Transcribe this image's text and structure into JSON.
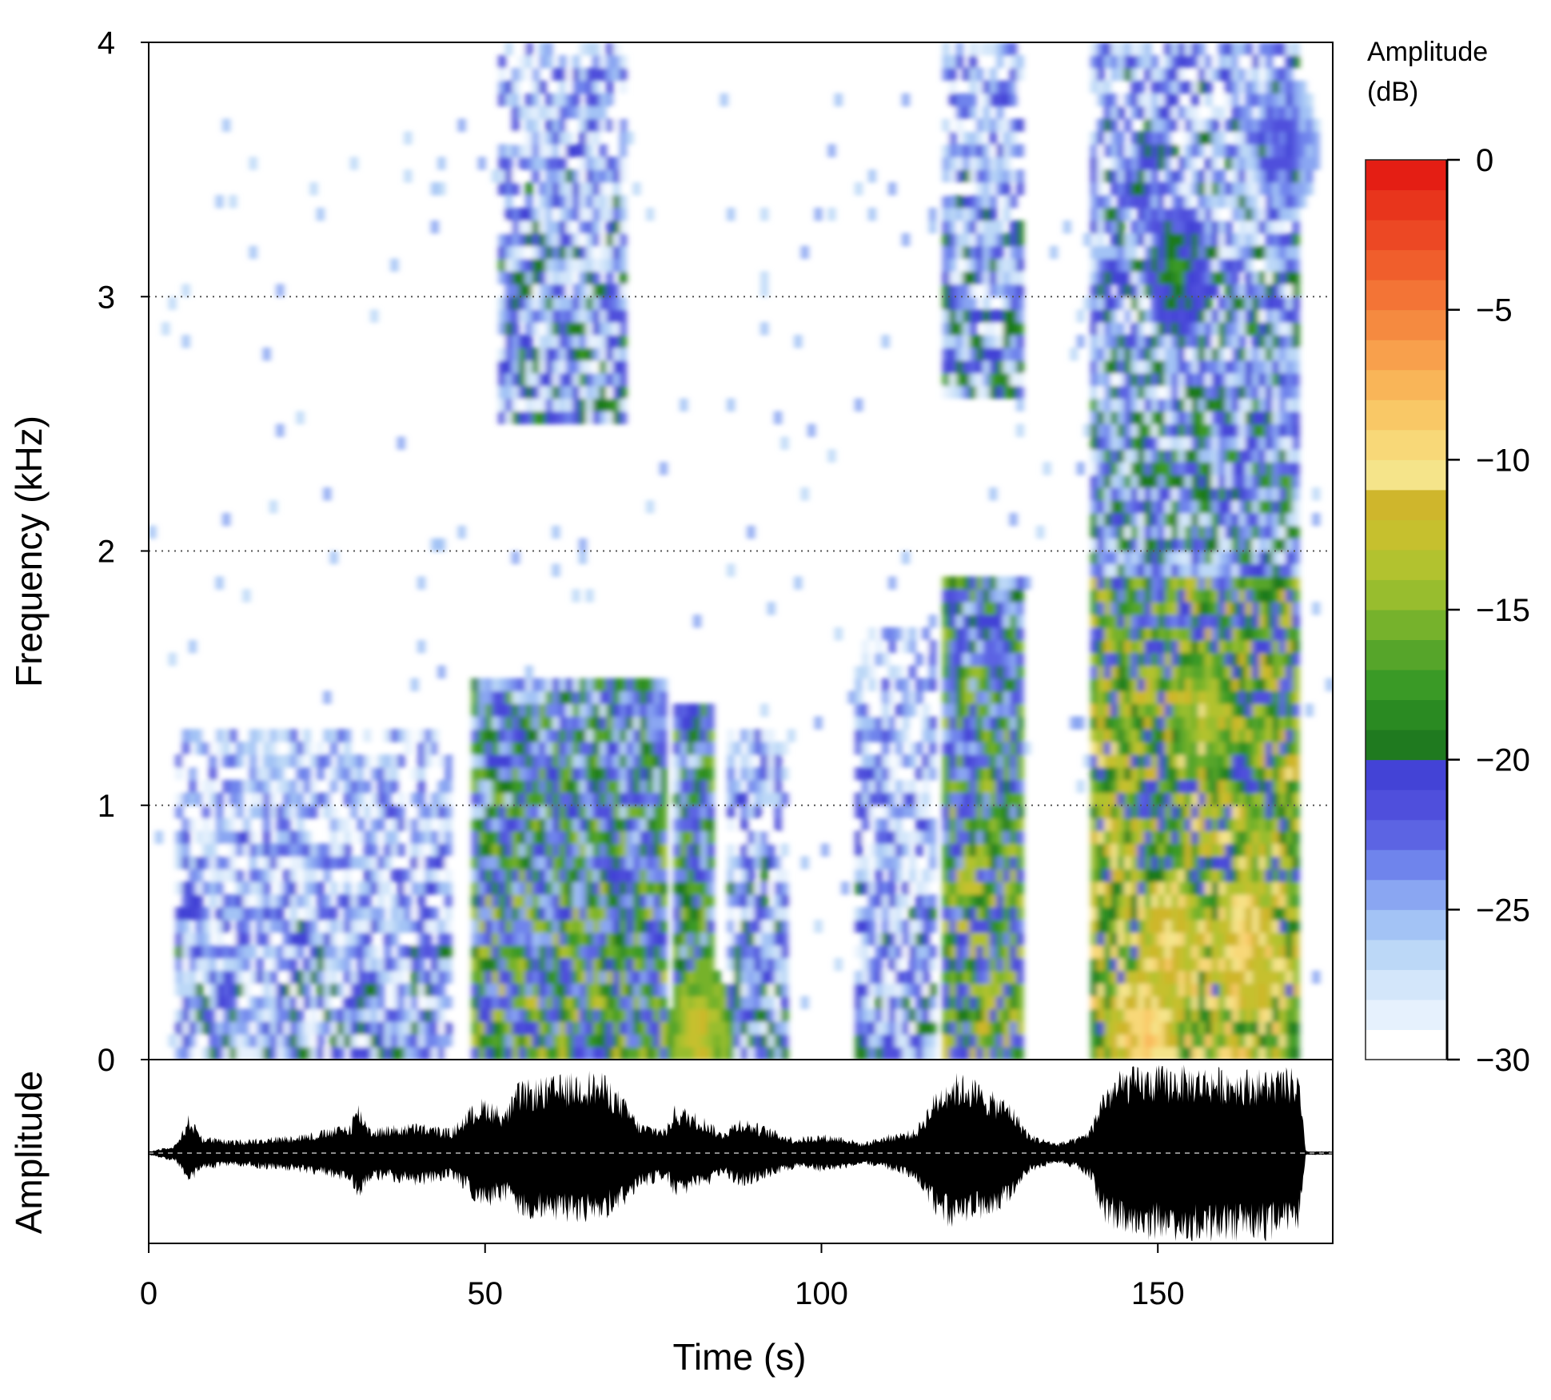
{
  "chart_data": [
    {
      "type": "heatmap",
      "title": "",
      "xlabel": "Time (s)",
      "ylabel": "Frequency (kHz)",
      "xlim": [
        0,
        176
      ],
      "ylim": [
        0,
        4
      ],
      "x_ticks": [
        "0",
        "50",
        "100",
        "150"
      ],
      "y_ticks": [
        "0",
        "1",
        "2",
        "3",
        "4"
      ],
      "grid": "dotted horizontal lines at 1, 2 and 3 kHz",
      "legend": {
        "title": "Amplitude (dB)",
        "position": "right",
        "ticks": [
          "0",
          "−5",
          "−10",
          "−15",
          "−20",
          "−25",
          "−30"
        ],
        "range": [
          -30,
          0
        ]
      },
      "energy_regions_dB": [
        {
          "t0": 4,
          "t1": 45,
          "f0": 0,
          "f1": 1.3,
          "level": -24
        },
        {
          "t0": 48,
          "t1": 77,
          "f0": 0,
          "f1": 1.5,
          "level": -18
        },
        {
          "t0": 52,
          "t1": 71,
          "f0": 2.5,
          "f1": 4,
          "level": -23
        },
        {
          "t0": 78,
          "t1": 84,
          "f0": 0,
          "f1": 1.4,
          "level": -18
        },
        {
          "t0": 86,
          "t1": 95,
          "f0": 0,
          "f1": 1.3,
          "level": -23
        },
        {
          "t0": 105,
          "t1": 117,
          "f0": 0,
          "f1": 1.7,
          "level": -24
        },
        {
          "t0": 118,
          "t1": 130,
          "f0": 0,
          "f1": 1.9,
          "level": -17
        },
        {
          "t0": 118,
          "t1": 130,
          "f0": 2.6,
          "f1": 4,
          "level": -23
        },
        {
          "t0": 140,
          "t1": 171,
          "f0": 0,
          "f1": 1.9,
          "level": -14
        },
        {
          "t0": 140,
          "t1": 171,
          "f0": 1.9,
          "f1": 4,
          "level": -22
        }
      ],
      "hotspots_dB": [
        {
          "t": 82,
          "f": 0.1,
          "level": -12
        },
        {
          "t": 148,
          "f": 0.1,
          "level": -8
        },
        {
          "t": 152,
          "f": 0.45,
          "level": -10
        },
        {
          "t": 163,
          "f": 0.45,
          "level": -9
        },
        {
          "t": 157,
          "f": 1.35,
          "level": -13
        },
        {
          "t": 153,
          "f": 3.1,
          "level": -18
        },
        {
          "t": 169,
          "f": 3.6,
          "level": -21
        }
      ]
    },
    {
      "type": "area",
      "title": "",
      "xlabel": "Time (s)",
      "ylabel": "Amplitude",
      "xlim": [
        0,
        176
      ],
      "ylim": [
        -1,
        1
      ],
      "y_ticks": [],
      "description": "oscillogram envelope (relative amplitude vs time)",
      "x": [
        0,
        4,
        6,
        8,
        12,
        20,
        25,
        30,
        31,
        33,
        40,
        45,
        48,
        50,
        53,
        55,
        60,
        63,
        65,
        68,
        71,
        73,
        77,
        78,
        80,
        83,
        85,
        88,
        92,
        96,
        100,
        103,
        106,
        110,
        114,
        117,
        119,
        122,
        125,
        128,
        131,
        135,
        138,
        140,
        142,
        145,
        150,
        155,
        160,
        165,
        170,
        171,
        172,
        176
      ],
      "envelope_top": [
        0.02,
        0.1,
        0.45,
        0.2,
        0.15,
        0.2,
        0.25,
        0.35,
        0.6,
        0.3,
        0.35,
        0.28,
        0.55,
        0.65,
        0.5,
        0.82,
        0.88,
        0.92,
        0.96,
        0.9,
        0.6,
        0.35,
        0.3,
        0.55,
        0.52,
        0.4,
        0.25,
        0.42,
        0.3,
        0.18,
        0.22,
        0.2,
        0.12,
        0.22,
        0.28,
        0.72,
        0.92,
        0.9,
        0.72,
        0.6,
        0.22,
        0.12,
        0.18,
        0.3,
        0.78,
        0.98,
        1.0,
        1.0,
        0.98,
        0.96,
        0.97,
        0.9,
        0.02,
        0.02
      ],
      "envelope_bottom": [
        -0.02,
        -0.1,
        -0.35,
        -0.2,
        -0.15,
        -0.2,
        -0.25,
        -0.35,
        -0.55,
        -0.3,
        -0.38,
        -0.3,
        -0.52,
        -0.65,
        -0.55,
        -0.75,
        -0.8,
        -0.78,
        -0.82,
        -0.75,
        -0.6,
        -0.4,
        -0.3,
        -0.5,
        -0.48,
        -0.4,
        -0.25,
        -0.4,
        -0.3,
        -0.18,
        -0.22,
        -0.2,
        -0.12,
        -0.2,
        -0.3,
        -0.72,
        -0.85,
        -0.8,
        -0.75,
        -0.55,
        -0.22,
        -0.12,
        -0.18,
        -0.3,
        -0.8,
        -0.98,
        -1.0,
        -1.0,
        -1.0,
        -1.0,
        -0.97,
        -0.9,
        -0.02,
        -0.02
      ]
    }
  ],
  "colors": {
    "dB_scale": [
      "#ffffff",
      "#e6f1fd",
      "#d3e6fa",
      "#bcd8f7",
      "#a3c3f5",
      "#8aa6f2",
      "#6f84ec",
      "#5c64e3",
      "#4f4fdc",
      "#4343d6",
      "#1f7a1f",
      "#2a8a22",
      "#3a9a26",
      "#56a52a",
      "#76b22c",
      "#98bd2e",
      "#b2c22f",
      "#c6c02e",
      "#cfb62c",
      "#f5e48a",
      "#f8d878",
      "#f9c866",
      "#f9b558",
      "#f8a04c",
      "#f58a40",
      "#f37436",
      "#f05e2c",
      "#ec4824",
      "#e8351c",
      "#e41e14"
    ],
    "waveform": "#000000",
    "grid": "#555555"
  }
}
